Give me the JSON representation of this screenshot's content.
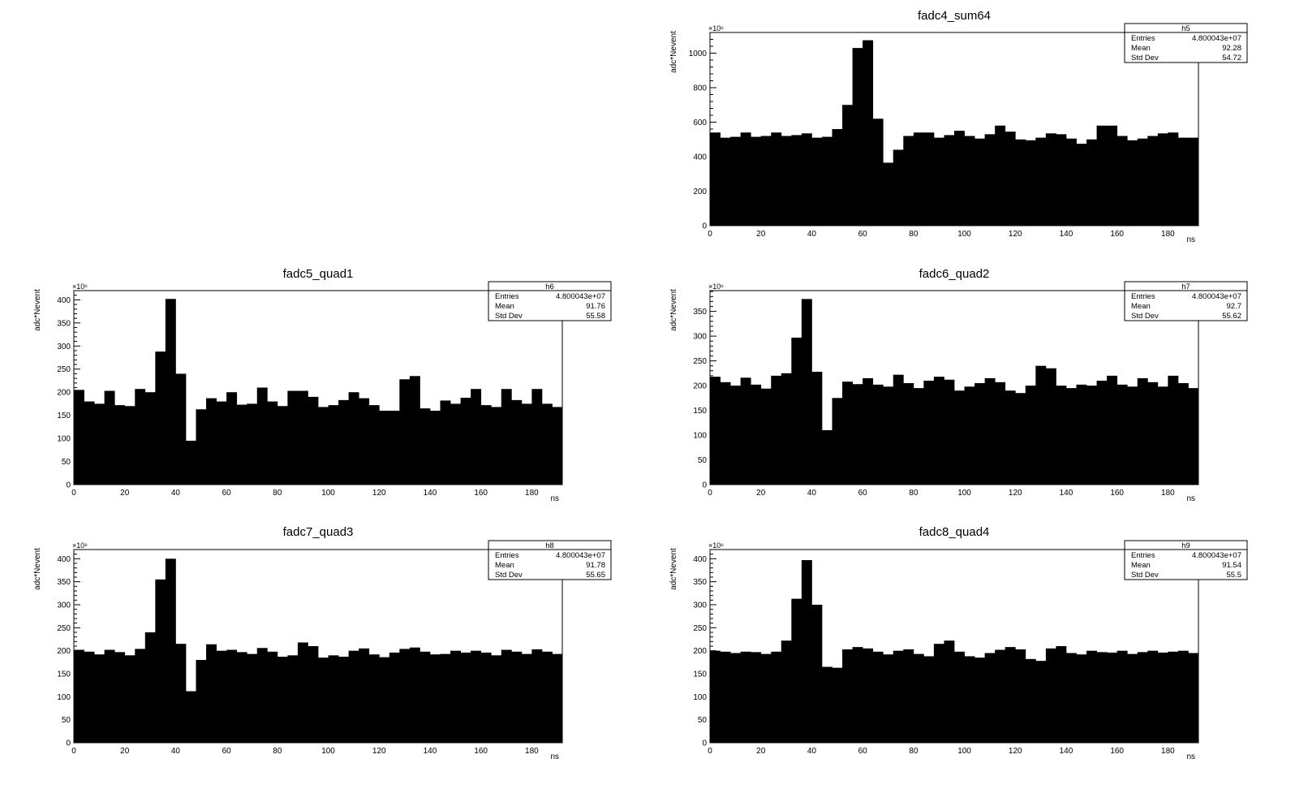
{
  "chart_data": [
    {
      "type": "bar",
      "title": "fadc4_sum64",
      "xlabel": "ns",
      "ylabel": "adc*Nevent",
      "y_exponent": "×10⁶",
      "xlim": [
        0,
        192
      ],
      "ylim": [
        0,
        1120
      ],
      "x_ticks": [
        0,
        20,
        40,
        60,
        80,
        100,
        120,
        140,
        160,
        180
      ],
      "y_ticks": [
        0,
        200,
        400,
        600,
        800,
        1000
      ],
      "bin_width": 4,
      "values": [
        540,
        510,
        515,
        540,
        515,
        520,
        540,
        520,
        525,
        535,
        510,
        515,
        560,
        700,
        1030,
        1075,
        620,
        365,
        440,
        520,
        540,
        540,
        510,
        525,
        550,
        520,
        505,
        530,
        580,
        545,
        500,
        495,
        510,
        535,
        530,
        505,
        475,
        500,
        580,
        580,
        520,
        495,
        505,
        520,
        535,
        540,
        510,
        510
      ],
      "stats": {
        "name": "h5",
        "rows": [
          {
            "label": "Entries",
            "value": "4.800043e+07"
          },
          {
            "label": "Mean",
            "value": "92.28"
          },
          {
            "label": "Std Dev",
            "value": "54.72"
          }
        ]
      }
    },
    {
      "type": "bar",
      "title": "fadc5_quad1",
      "xlabel": "ns",
      "ylabel": "adc*Nevent",
      "y_exponent": "×10⁶",
      "xlim": [
        0,
        192
      ],
      "ylim": [
        0,
        420
      ],
      "x_ticks": [
        0,
        20,
        40,
        60,
        80,
        100,
        120,
        140,
        160,
        180
      ],
      "y_ticks": [
        0,
        50,
        100,
        150,
        200,
        250,
        300,
        350,
        400
      ],
      "bin_width": 4,
      "values": [
        205,
        180,
        175,
        203,
        172,
        170,
        207,
        200,
        288,
        402,
        240,
        95,
        163,
        187,
        180,
        200,
        173,
        175,
        210,
        180,
        170,
        203,
        203,
        190,
        168,
        172,
        183,
        200,
        187,
        172,
        160,
        160,
        228,
        235,
        165,
        160,
        182,
        175,
        188,
        207,
        172,
        168,
        207,
        183,
        175,
        207,
        175,
        168
      ],
      "stats": {
        "name": "h6",
        "rows": [
          {
            "label": "Entries",
            "value": "4.800043e+07"
          },
          {
            "label": "Mean",
            "value": "91.76"
          },
          {
            "label": "Std Dev",
            "value": "55.58"
          }
        ]
      }
    },
    {
      "type": "bar",
      "title": "fadc6_quad2",
      "xlabel": "ns",
      "ylabel": "adc*Nevent",
      "y_exponent": "×10⁶",
      "xlim": [
        0,
        192
      ],
      "ylim": [
        0,
        392
      ],
      "x_ticks": [
        0,
        20,
        40,
        60,
        80,
        100,
        120,
        140,
        160,
        180
      ],
      "y_ticks": [
        0,
        50,
        100,
        150,
        200,
        250,
        300,
        350
      ],
      "bin_width": 4,
      "values": [
        218,
        207,
        200,
        216,
        202,
        194,
        220,
        225,
        297,
        375,
        228,
        110,
        175,
        208,
        203,
        215,
        202,
        198,
        222,
        205,
        195,
        210,
        218,
        212,
        190,
        198,
        205,
        215,
        207,
        190,
        185,
        200,
        240,
        235,
        200,
        195,
        202,
        200,
        210,
        220,
        202,
        198,
        215,
        207,
        198,
        220,
        205,
        195
      ],
      "stats": {
        "name": "h7",
        "rows": [
          {
            "label": "Entries",
            "value": "4.800043e+07"
          },
          {
            "label": "Mean",
            "value": "92.7"
          },
          {
            "label": "Std Dev",
            "value": "55.62"
          }
        ]
      }
    },
    {
      "type": "bar",
      "title": "fadc7_quad3",
      "xlabel": "ns",
      "ylabel": "adc*Nevent",
      "y_exponent": "×10⁶",
      "xlim": [
        0,
        192
      ],
      "ylim": [
        0,
        420
      ],
      "x_ticks": [
        0,
        20,
        40,
        60,
        80,
        100,
        120,
        140,
        160,
        180
      ],
      "y_ticks": [
        0,
        50,
        100,
        150,
        200,
        250,
        300,
        350,
        400
      ],
      "bin_width": 4,
      "values": [
        202,
        198,
        192,
        202,
        197,
        190,
        204,
        240,
        355,
        400,
        215,
        112,
        180,
        214,
        200,
        202,
        197,
        193,
        206,
        198,
        187,
        190,
        218,
        210,
        185,
        190,
        187,
        200,
        205,
        192,
        186,
        196,
        204,
        207,
        198,
        192,
        193,
        200,
        196,
        200,
        196,
        190,
        202,
        198,
        193,
        203,
        198,
        193
      ],
      "stats": {
        "name": "h8",
        "rows": [
          {
            "label": "Entries",
            "value": "4.800043e+07"
          },
          {
            "label": "Mean",
            "value": "91.78"
          },
          {
            "label": "Std Dev",
            "value": "55.65"
          }
        ]
      }
    },
    {
      "type": "bar",
      "title": "fadc8_quad4",
      "xlabel": "ns",
      "ylabel": "adc*Nevent",
      "y_exponent": "×10⁶",
      "xlim": [
        0,
        192
      ],
      "ylim": [
        0,
        420
      ],
      "x_ticks": [
        0,
        20,
        40,
        60,
        80,
        100,
        120,
        140,
        160,
        180
      ],
      "y_ticks": [
        0,
        50,
        100,
        150,
        200,
        250,
        300,
        350,
        400
      ],
      "bin_width": 4,
      "values": [
        200,
        198,
        195,
        198,
        197,
        193,
        198,
        222,
        313,
        397,
        300,
        165,
        163,
        203,
        208,
        205,
        198,
        192,
        200,
        203,
        193,
        188,
        215,
        222,
        198,
        188,
        185,
        195,
        202,
        208,
        203,
        182,
        178,
        205,
        210,
        195,
        192,
        200,
        197,
        196,
        200,
        193,
        197,
        200,
        196,
        198,
        200,
        195
      ],
      "stats": {
        "name": "h9",
        "rows": [
          {
            "label": "Entries",
            "value": "4.800043e+07"
          },
          {
            "label": "Mean",
            "value": "91.54"
          },
          {
            "label": "Std Dev",
            "value": "55.5"
          }
        ]
      }
    }
  ]
}
